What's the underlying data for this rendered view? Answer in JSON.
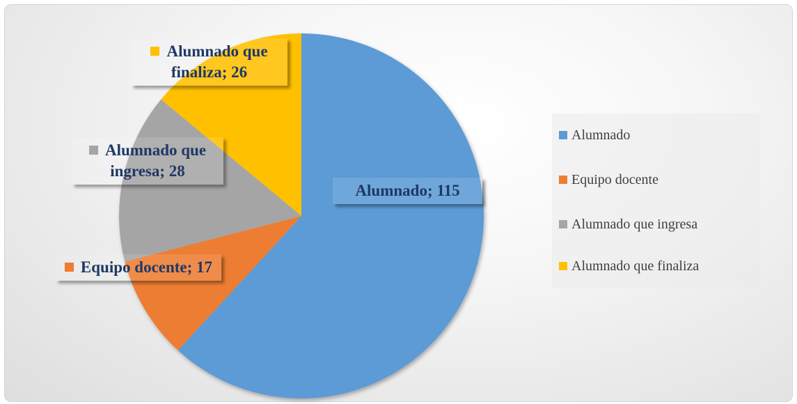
{
  "chart_data": {
    "type": "pie",
    "categories": [
      "Alumnado",
      "Equipo docente",
      "Alumnado que ingresa",
      "Alumnado que finaliza"
    ],
    "values": [
      115,
      17,
      28,
      26
    ],
    "value_labels": [
      "Alumnado; 115",
      "Equipo docente; 17",
      "Alumnado que ingresa; 28",
      "Alumnado que finaliza; 26"
    ],
    "colors": [
      "#5b9bd5",
      "#ed7d31",
      "#a5a5a5",
      "#ffc000"
    ],
    "legend": "right"
  }
}
